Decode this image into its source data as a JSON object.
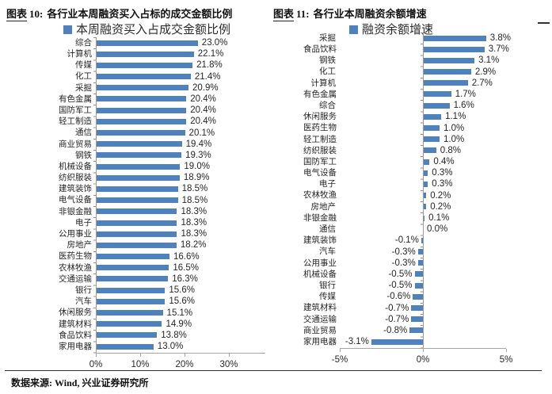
{
  "header": {
    "fig10": {
      "tag": "图表",
      "num": "10:",
      "title": "各行业本周融资买入占标的成交金额比例"
    },
    "fig11": {
      "tag": "图表",
      "num": "11:",
      "title": "各行业本周融资余额增速"
    }
  },
  "footer": {
    "source": "数据来源: Wind, 兴业证券研究所"
  },
  "colors": {
    "bar": "#4F81BD",
    "axis": "#a6a6a6",
    "text": "#262626"
  },
  "chart_data": [
    {
      "type": "bar",
      "orientation": "horizontal",
      "title": "图表 10: 各行业本周融资买入占标的成交金额比例",
      "legend": "本周融资买入占成交金额比例",
      "value_suffix": "%",
      "categories": [
        "综合",
        "计算机",
        "传媒",
        "化工",
        "采掘",
        "有色金属",
        "国防军工",
        "轻工制造",
        "通信",
        "商业贸易",
        "钢铁",
        "机械设备",
        "纺织服装",
        "建筑装饰",
        "电气设备",
        "非银金融",
        "电子",
        "公用事业",
        "房地产",
        "医药生物",
        "农林牧渔",
        "交通运输",
        "银行",
        "汽车",
        "休闲服务",
        "建筑材料",
        "食品饮料",
        "家用电器"
      ],
      "values": [
        23.0,
        22.1,
        21.8,
        21.4,
        20.9,
        20.4,
        20.4,
        20.4,
        20.1,
        19.4,
        19.3,
        19.0,
        18.9,
        18.5,
        18.5,
        18.3,
        18.3,
        18.3,
        18.2,
        16.6,
        16.5,
        16.3,
        15.6,
        15.6,
        15.1,
        14.9,
        13.8,
        13.0
      ],
      "xlim": [
        0,
        30
      ],
      "xticks": [
        {
          "value": 0,
          "label": "0%"
        },
        {
          "value": 10,
          "label": "10%"
        },
        {
          "value": 20,
          "label": "20%"
        },
        {
          "value": 30,
          "label": "30%"
        }
      ],
      "grid": false,
      "legend_position": "top"
    },
    {
      "type": "bar",
      "orientation": "horizontal",
      "title": "图表 11: 各行业本周融资余额增速",
      "legend": "融资余额增速",
      "value_suffix": "%",
      "categories": [
        "采掘",
        "食品饮料",
        "钢铁",
        "化工",
        "计算机",
        "有色金属",
        "综合",
        "休闲服务",
        "医药生物",
        "轻工制造",
        "纺织服装",
        "国防军工",
        "电气设备",
        "电子",
        "农林牧渔",
        "房地产",
        "非银金融",
        "通信",
        "建筑装饰",
        "汽车",
        "公用事业",
        "机械设备",
        "银行",
        "传媒",
        "建筑材料",
        "交通运输",
        "商业贸易",
        "家用电器"
      ],
      "values": [
        3.8,
        3.7,
        3.1,
        2.9,
        2.7,
        1.7,
        1.6,
        1.1,
        1.0,
        1.0,
        0.8,
        0.4,
        0.3,
        0.3,
        0.2,
        0.2,
        0.1,
        0.0,
        -0.1,
        -0.3,
        -0.3,
        -0.5,
        -0.5,
        -0.6,
        -0.7,
        -0.7,
        -0.8,
        -3.1
      ],
      "xlim": [
        -5,
        5
      ],
      "xticks": [
        {
          "value": -5,
          "label": "-5%"
        },
        {
          "value": 0,
          "label": "0%"
        },
        {
          "value": 5,
          "label": "5%"
        }
      ],
      "grid": false,
      "legend_position": "top"
    }
  ]
}
